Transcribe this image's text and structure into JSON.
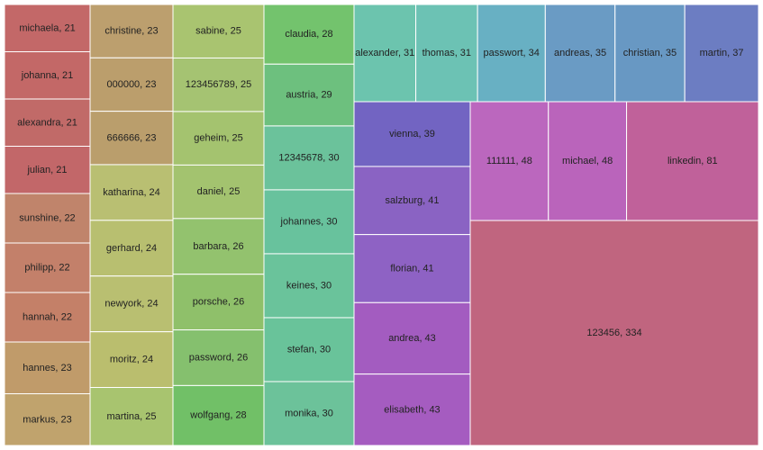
{
  "chart_data": {
    "type": "treemap",
    "title": "",
    "label_format": "{name}, {value}",
    "items": [
      {
        "name": "123456",
        "value": 334,
        "color": "#C0657F"
      },
      {
        "name": "linkedin",
        "value": 81,
        "color": "#C0619A"
      },
      {
        "name": "michael",
        "value": 48,
        "color": "#BA64BB"
      },
      {
        "name": "111111",
        "value": 48,
        "color": "#BB67BE"
      },
      {
        "name": "elisabeth",
        "value": 43,
        "color": "#A55CC0"
      },
      {
        "name": "andrea",
        "value": 43,
        "color": "#A35CC0"
      },
      {
        "name": "florian",
        "value": 41,
        "color": "#8E62C4"
      },
      {
        "name": "salzburg",
        "value": 41,
        "color": "#8A63C3"
      },
      {
        "name": "vienna",
        "value": 39,
        "color": "#7264C2"
      },
      {
        "name": "martin",
        "value": 37,
        "color": "#6C7DC2"
      },
      {
        "name": "christian",
        "value": 35,
        "color": "#6898C3"
      },
      {
        "name": "andreas",
        "value": 35,
        "color": "#6A9BC4"
      },
      {
        "name": "passwort",
        "value": 34,
        "color": "#68B0C3"
      },
      {
        "name": "thomas",
        "value": 31,
        "color": "#6CC2B4"
      },
      {
        "name": "alexander",
        "value": 31,
        "color": "#6CC4AE"
      },
      {
        "name": "monika",
        "value": 30,
        "color": "#6CC29A"
      },
      {
        "name": "stefan",
        "value": 30,
        "color": "#69C39A"
      },
      {
        "name": "keines",
        "value": 30,
        "color": "#6AC39B"
      },
      {
        "name": "johannes",
        "value": 30,
        "color": "#68C29D"
      },
      {
        "name": "12345678",
        "value": 30,
        "color": "#6BC29B"
      },
      {
        "name": "austria",
        "value": 29,
        "color": "#6DC07E"
      },
      {
        "name": "claudia",
        "value": 28,
        "color": "#73C36D"
      },
      {
        "name": "wolfgang",
        "value": 28,
        "color": "#71C067"
      },
      {
        "name": "password",
        "value": 26,
        "color": "#85C06E"
      },
      {
        "name": "porsche",
        "value": 26,
        "color": "#8FC06A"
      },
      {
        "name": "barbara",
        "value": 26,
        "color": "#93C26E"
      },
      {
        "name": "daniel",
        "value": 25,
        "color": "#A3C36F"
      },
      {
        "name": "geheim",
        "value": 25,
        "color": "#A4C36F"
      },
      {
        "name": "123456789",
        "value": 25,
        "color": "#A5C372"
      },
      {
        "name": "sabine",
        "value": 25,
        "color": "#A9C470"
      },
      {
        "name": "martina",
        "value": 25,
        "color": "#A8C46F"
      },
      {
        "name": "moritz",
        "value": 24,
        "color": "#BABE6E"
      },
      {
        "name": "newyork",
        "value": 24,
        "color": "#B9BF71"
      },
      {
        "name": "gerhard",
        "value": 24,
        "color": "#B8BF70"
      },
      {
        "name": "katharina",
        "value": 24,
        "color": "#B9BF72"
      },
      {
        "name": "666666",
        "value": 23,
        "color": "#BA9E6C"
      },
      {
        "name": "000000",
        "value": 23,
        "color": "#BB9E6C"
      },
      {
        "name": "christine",
        "value": 23,
        "color": "#BC9F6E"
      },
      {
        "name": "markus",
        "value": 23,
        "color": "#C0A36D"
      },
      {
        "name": "hannes",
        "value": 23,
        "color": "#C09B6A"
      },
      {
        "name": "hannah",
        "value": 22,
        "color": "#C48068"
      },
      {
        "name": "philipp",
        "value": 22,
        "color": "#C3806A"
      },
      {
        "name": "sunshine",
        "value": 22,
        "color": "#C0846B"
      },
      {
        "name": "julian",
        "value": 21,
        "color": "#C26769"
      },
      {
        "name": "alexandra",
        "value": 21,
        "color": "#C16A68"
      },
      {
        "name": "johanna",
        "value": 21,
        "color": "#C36867"
      },
      {
        "name": "michaela",
        "value": 21,
        "color": "#C36868"
      }
    ]
  }
}
